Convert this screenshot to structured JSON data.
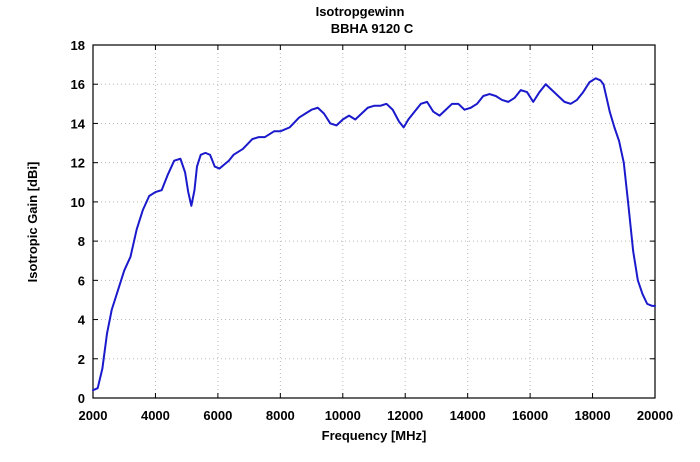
{
  "chart_data": {
    "type": "line",
    "title": "Isotropgewinn",
    "subtitle": "BBHA 9120 C",
    "xlabel": "Frequency [MHz]",
    "ylabel": "Isotropic Gain [dBi]",
    "xlim": [
      2000,
      20000
    ],
    "ylim": [
      0,
      18
    ],
    "xticks": [
      2000,
      4000,
      6000,
      8000,
      10000,
      12000,
      14000,
      16000,
      18000,
      20000
    ],
    "yticks": [
      0,
      2,
      4,
      6,
      8,
      10,
      12,
      14,
      16,
      18
    ],
    "grid": true,
    "legend": "none",
    "colors": {
      "series": "#1a1acc",
      "grid": "#b8b8b8",
      "frame": "#000000"
    },
    "series": [
      {
        "x": [
          2000,
          2150,
          2300,
          2450,
          2600,
          2800,
          3000,
          3200,
          3400,
          3600,
          3800,
          4000,
          4200,
          4400,
          4600,
          4800,
          4950,
          5050,
          5150,
          5250,
          5330,
          5450,
          5600,
          5750,
          5900,
          6050,
          6200,
          6350,
          6500,
          6800,
          7100,
          7300,
          7500,
          7800,
          8000,
          8300,
          8600,
          8800,
          9000,
          9200,
          9400,
          9600,
          9800,
          10000,
          10200,
          10400,
          10600,
          10800,
          11000,
          11200,
          11400,
          11600,
          11800,
          11950,
          12100,
          12300,
          12500,
          12700,
          12900,
          13100,
          13300,
          13500,
          13700,
          13900,
          14100,
          14300,
          14500,
          14700,
          14900,
          15100,
          15300,
          15500,
          15700,
          15900,
          16100,
          16300,
          16500,
          16700,
          16900,
          17100,
          17300,
          17500,
          17700,
          17900,
          18100,
          18250,
          18350,
          18450,
          18550,
          18700,
          18850,
          19000,
          19150,
          19300,
          19450,
          19600,
          19750,
          19900,
          20000
        ],
        "y": [
          0.4,
          0.5,
          1.5,
          3.3,
          4.5,
          5.5,
          6.5,
          7.2,
          8.6,
          9.6,
          10.3,
          10.5,
          10.6,
          11.4,
          12.1,
          12.2,
          11.5,
          10.5,
          9.8,
          10.6,
          11.8,
          12.4,
          12.5,
          12.4,
          11.8,
          11.7,
          11.9,
          12.1,
          12.4,
          12.7,
          13.2,
          13.3,
          13.3,
          13.6,
          13.6,
          13.8,
          14.3,
          14.5,
          14.7,
          14.8,
          14.5,
          14.0,
          13.9,
          14.2,
          14.4,
          14.2,
          14.5,
          14.8,
          14.9,
          14.9,
          15.0,
          14.7,
          14.1,
          13.8,
          14.2,
          14.6,
          15.0,
          15.1,
          14.6,
          14.4,
          14.7,
          15.0,
          15.0,
          14.7,
          14.8,
          15.0,
          15.4,
          15.5,
          15.4,
          15.2,
          15.1,
          15.3,
          15.7,
          15.6,
          15.1,
          15.6,
          16.0,
          15.7,
          15.4,
          15.1,
          15.0,
          15.2,
          15.6,
          16.1,
          16.3,
          16.2,
          16.0,
          15.3,
          14.6,
          13.8,
          13.1,
          12.0,
          9.8,
          7.5,
          6.0,
          5.3,
          4.8,
          4.7,
          4.7
        ]
      }
    ]
  }
}
